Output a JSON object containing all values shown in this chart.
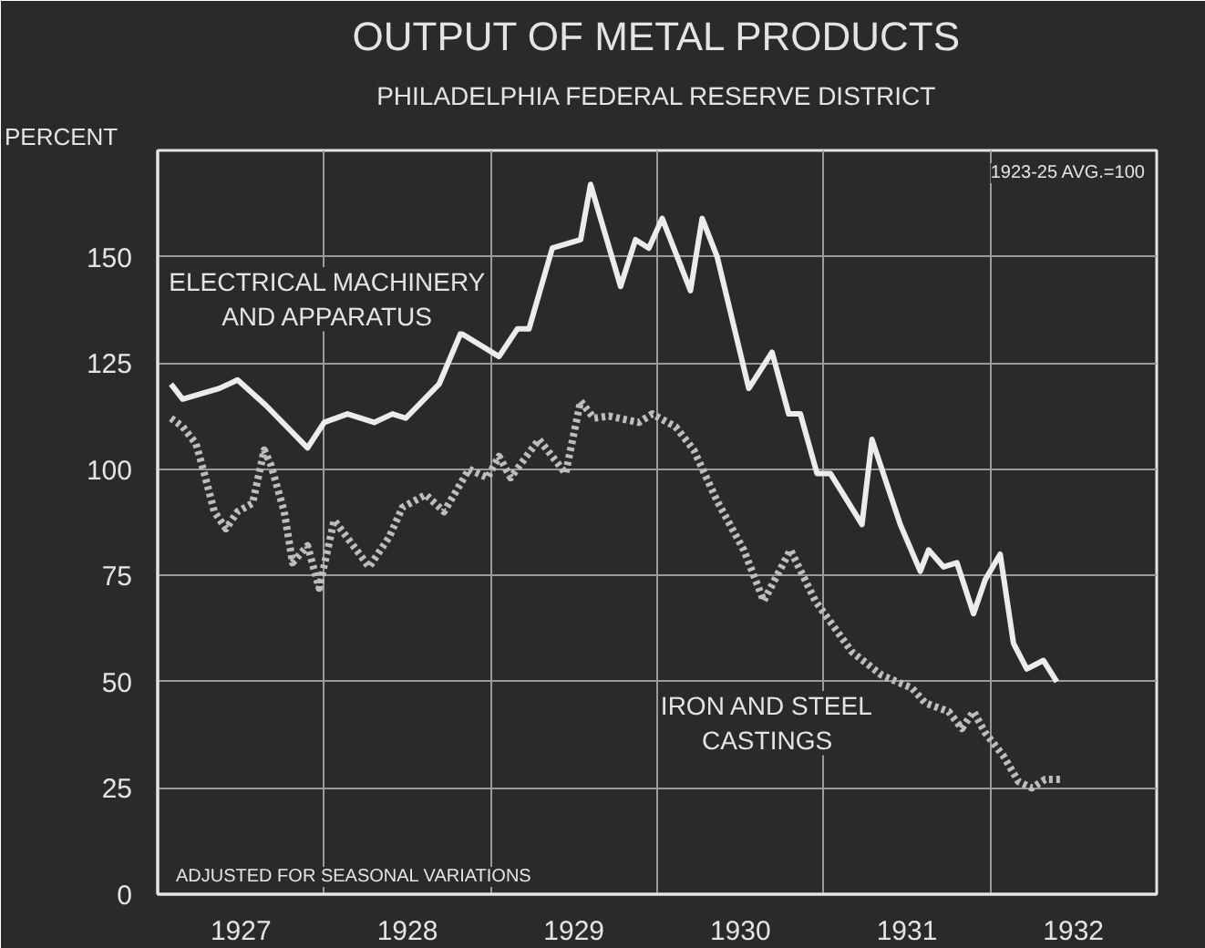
{
  "chart_data": {
    "type": "line",
    "title": "OUTPUT OF METAL PRODUCTS",
    "subtitle": "PHILADELPHIA FEDERAL RESERVE DISTRICT",
    "ylabel": "PERCENT",
    "annotations": [
      "1923-25 AVG.=100",
      "ADJUSTED FOR SEASONAL VARIATIONS"
    ],
    "xlim": [
      1927,
      1933
    ],
    "xticks": [
      {
        "value": 1927.5,
        "label": "1927"
      },
      {
        "value": 1928.5,
        "label": "1928"
      },
      {
        "value": 1929.5,
        "label": "1929"
      },
      {
        "value": 1930.5,
        "label": "1930"
      },
      {
        "value": 1931.5,
        "label": "1931"
      },
      {
        "value": 1932.5,
        "label": "1932"
      },
      {
        "value": 1928,
        "label": null
      },
      {
        "value": 1929,
        "label": null
      },
      {
        "value": 1930,
        "label": null
      },
      {
        "value": 1931,
        "label": null
      },
      {
        "value": 1932,
        "label": null
      }
    ],
    "ylim": [
      0,
      175
    ],
    "yticks": [
      0,
      25,
      50,
      75,
      100,
      125,
      150
    ],
    "grid": true,
    "series": [
      {
        "name": "ELECTRICAL MACHINERY AND APPARATUS",
        "color": "#ececec",
        "line_style": "solid",
        "x": [
          1927.08,
          1927.15,
          1927.37,
          1927.48,
          1927.65,
          1927.9,
          1928.0,
          1928.14,
          1928.3,
          1928.41,
          1928.49,
          1928.69,
          1928.82,
          1929.05,
          1929.16,
          1929.23,
          1929.37,
          1929.54,
          1929.6,
          1929.78,
          1929.87,
          1929.95,
          1930.03,
          1930.2,
          1930.27,
          1930.36,
          1930.55,
          1930.69,
          1930.79,
          1930.86,
          1930.96,
          1931.04,
          1931.23,
          1931.29,
          1931.46,
          1931.58,
          1931.63,
          1931.72,
          1931.8,
          1931.9,
          1931.97,
          1932.06,
          1932.14,
          1932.22,
          1932.32,
          1932.4
        ],
        "values": [
          120,
          116.5,
          119,
          121,
          115,
          105,
          111,
          113,
          111,
          113,
          112,
          120,
          132,
          126.5,
          133,
          133,
          152,
          154,
          167,
          143,
          154,
          152,
          159,
          142,
          159,
          150,
          119,
          127.5,
          113,
          113,
          99,
          99,
          87,
          107,
          87,
          76,
          81,
          77,
          78,
          66,
          74,
          80,
          59,
          53,
          55,
          50
        ]
      },
      {
        "name": "IRON AND STEEL CASTINGS",
        "color": "#bdbdbd",
        "line_style": "dotted",
        "x": [
          1927.08,
          1927.15,
          1927.23,
          1927.28,
          1927.34,
          1927.41,
          1927.48,
          1927.57,
          1927.64,
          1927.68,
          1927.76,
          1927.81,
          1927.9,
          1927.97,
          1928.06,
          1928.27,
          1928.39,
          1928.47,
          1928.61,
          1928.72,
          1928.87,
          1928.98,
          1929.05,
          1929.12,
          1929.29,
          1929.45,
          1929.54,
          1929.62,
          1929.71,
          1929.89,
          1929.97,
          1930.11,
          1930.22,
          1930.36,
          1930.52,
          1930.64,
          1930.8,
          1930.95,
          1931.17,
          1931.35,
          1931.53,
          1931.61,
          1931.75,
          1931.83,
          1931.9,
          1931.97,
          1932.08,
          1932.17,
          1932.25,
          1932.33,
          1932.44
        ],
        "values": [
          112,
          110,
          106,
          99,
          90,
          86,
          90,
          92,
          104.5,
          101,
          90,
          78,
          82,
          72,
          88,
          77,
          84,
          91,
          94,
          90,
          100,
          98,
          103,
          98,
          107,
          99,
          116,
          112,
          112.5,
          111,
          113,
          110,
          104.5,
          92.5,
          81,
          69,
          81,
          69,
          57,
          51.5,
          48.5,
          45,
          43,
          39,
          43,
          38,
          32.5,
          26.5,
          25,
          27,
          27
        ]
      }
    ]
  }
}
